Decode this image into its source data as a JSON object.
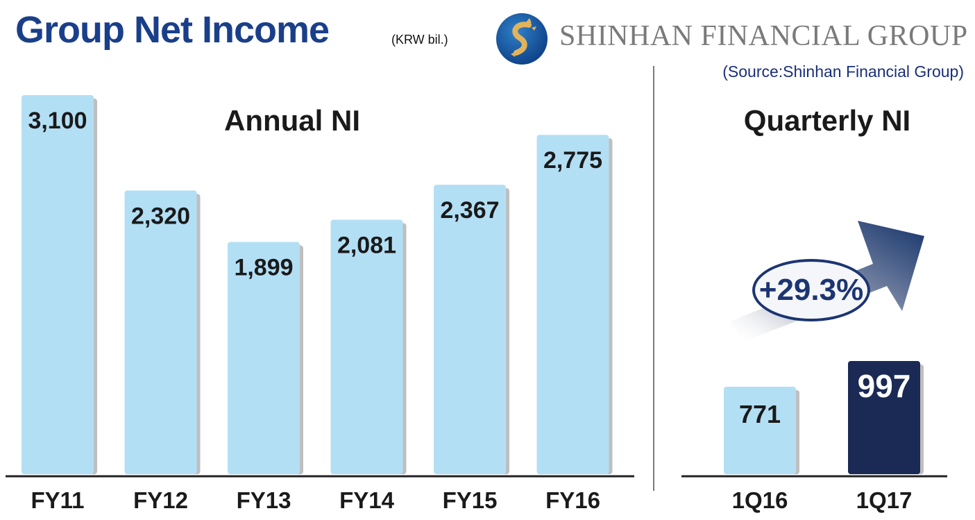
{
  "header": {
    "title": "Group Net Income",
    "unit": "(KRW bil.)",
    "brand": "SHINHAN FINANCIAL GROUP",
    "source": "(Source:Shinhan Financial Group)",
    "logo_icon": "shinhan-logo-icon"
  },
  "colors": {
    "title": "#1a3f8a",
    "light_bar": "#b3dff5",
    "dark_bar": "#1a2a55",
    "accent": "#1c3572",
    "axis": "#222222"
  },
  "chart_data": [
    {
      "type": "bar",
      "title": "Annual NI",
      "categories": [
        "FY11",
        "FY12",
        "FY13",
        "FY14",
        "FY15",
        "FY16"
      ],
      "values": [
        3100,
        2320,
        1899,
        2081,
        2367,
        2775
      ],
      "data_labels": [
        "3,100",
        "2,320",
        "1,899",
        "2,081",
        "2,367",
        "2,775"
      ],
      "ylim": [
        0,
        3100
      ],
      "grid": false,
      "legend": "none"
    },
    {
      "type": "bar",
      "title": "Quarterly NI",
      "categories": [
        "1Q16",
        "1Q17"
      ],
      "values": [
        771,
        997
      ],
      "data_labels": [
        "771",
        "997"
      ],
      "annotation": "+29.3%",
      "annotation_icon": "trend-arrow-icon",
      "grid": false,
      "legend": "none"
    }
  ]
}
